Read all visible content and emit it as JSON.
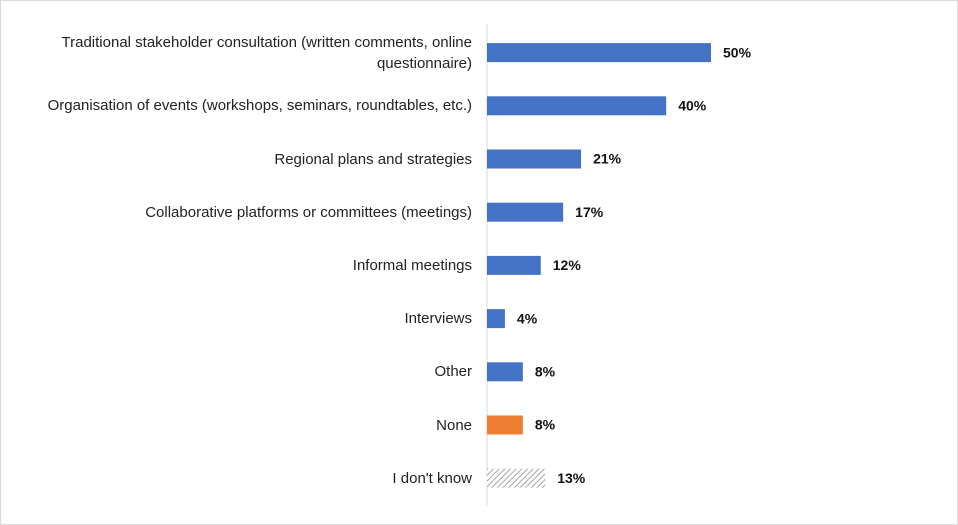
{
  "chart_data": {
    "type": "bar",
    "orientation": "horizontal",
    "categories": [
      "Traditional stakeholder consultation (written comments, online questionnaire)",
      "Organisation of events (workshops, seminars, roundtables, etc.)",
      "Regional plans and strategies",
      "Collaborative platforms or committees (meetings)",
      "Informal meetings",
      "Interviews",
      "Other",
      "None",
      "I don't know"
    ],
    "values": [
      50,
      40,
      21,
      17,
      12,
      4,
      8,
      8,
      13
    ],
    "value_labels": [
      "50%",
      "40%",
      "21%",
      "17%",
      "12%",
      "4%",
      "8%",
      "8%",
      "13%"
    ],
    "colors": [
      "#4472c4",
      "#4472c4",
      "#4472c4",
      "#4472c4",
      "#4472c4",
      "#4472c4",
      "#4472c4",
      "#ed7d31",
      "#a6a6a6"
    ],
    "hatched": [
      false,
      false,
      false,
      false,
      false,
      false,
      false,
      false,
      true
    ],
    "xlim": [
      0,
      50
    ]
  }
}
